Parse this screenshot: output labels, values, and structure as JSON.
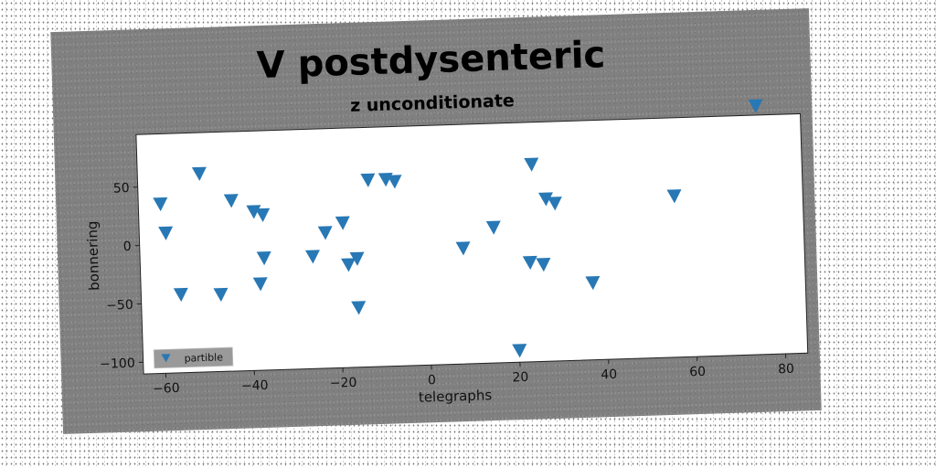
{
  "chart_data": {
    "type": "scatter",
    "title": "V postdysenteric",
    "subtitle": "z unconditionate",
    "xlabel": "telegraphs",
    "ylabel": "bonnering",
    "xlim": [
      -65,
      85
    ],
    "ylim": [
      -110,
      95
    ],
    "xticks": [
      -60,
      -40,
      -20,
      0,
      20,
      40,
      60,
      80
    ],
    "yticks": [
      -100,
      -50,
      0,
      50
    ],
    "grid": false,
    "legend_position": "lower-left",
    "series": [
      {
        "name": "partible",
        "color": "#2878b5",
        "marker": "triangle-down",
        "x": [
          -60,
          -59,
          -56,
          -51,
          -47,
          -44,
          -39,
          -38,
          -37,
          -37,
          -26,
          -23,
          -19,
          -18,
          -16,
          -16,
          -13,
          -9,
          -7,
          8,
          15,
          20,
          23,
          24,
          26,
          27,
          29,
          37,
          56,
          75
        ],
        "y": [
          35,
          10,
          -43,
          60,
          -44,
          36,
          26,
          -36,
          23,
          -14,
          -14,
          6,
          14,
          -22,
          -17,
          -59,
          50,
          50,
          48,
          -11,
          6,
          -100,
          -25,
          59,
          -27,
          29,
          25,
          -44,
          28,
          103
        ]
      }
    ]
  }
}
